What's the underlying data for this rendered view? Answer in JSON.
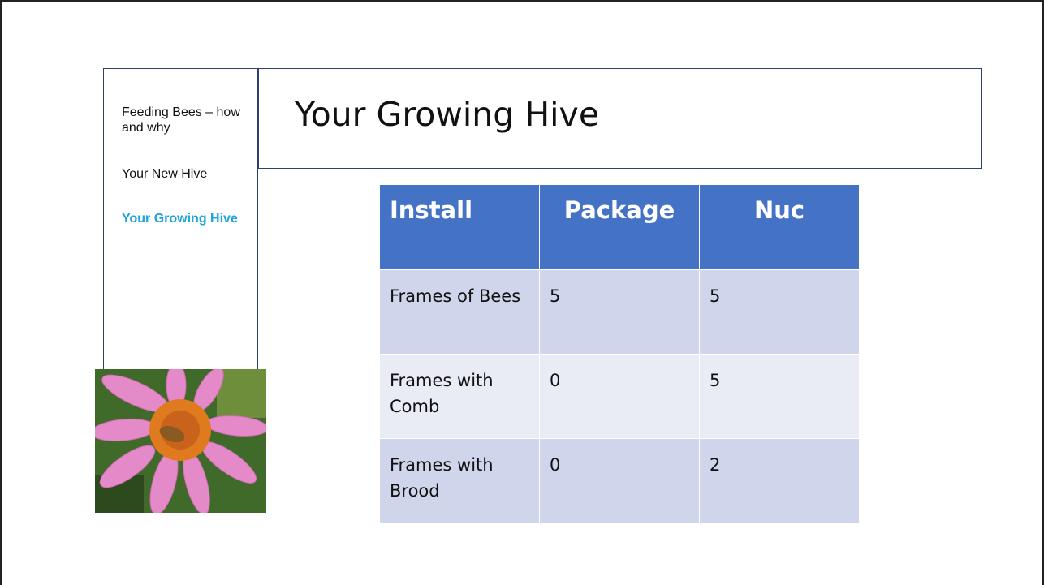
{
  "sidebar": {
    "items": [
      "Feeding Bees – how and why",
      "Your New Hive",
      "Your Growing Hive"
    ]
  },
  "title": "Your Growing Hive",
  "table": {
    "header": [
      "Install",
      "Package",
      "Nuc"
    ],
    "rows": [
      [
        "Frames of Bees",
        5,
        5
      ],
      [
        "Frames with Comb",
        0,
        5
      ],
      [
        "Frames with Brood",
        0,
        2
      ]
    ]
  }
}
